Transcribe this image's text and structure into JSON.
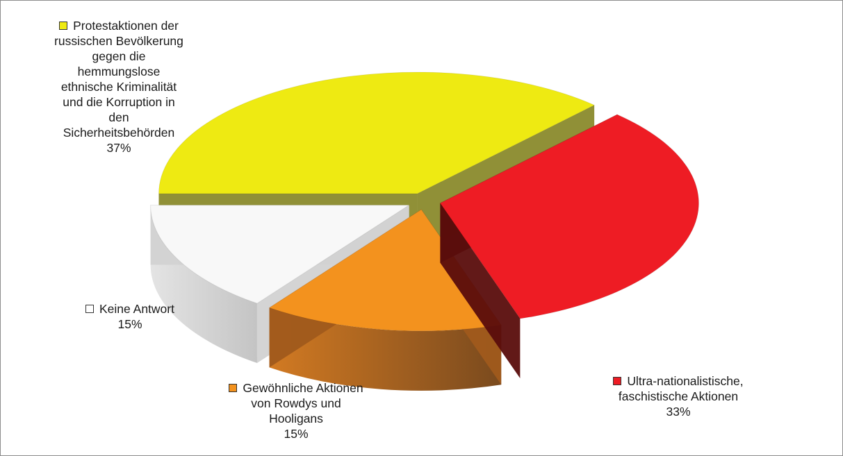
{
  "chart_data": {
    "type": "pie",
    "style": "3d-exploded",
    "slices": [
      {
        "id": "protest",
        "label_lines": [
          "Protestaktionen der",
          "russischen Bevölkerung",
          "gegen die",
          "hemmungslose",
          "ethnische Kriminalität",
          "und die Korruption in",
          "den",
          "Sicherheitsbehörden"
        ],
        "percent_label": "37%",
        "value": 37,
        "color": "#eeea12",
        "side_color": "#8a8a2c"
      },
      {
        "id": "ultra",
        "label_lines": [
          "Ultra-nationalistische,",
          "faschistische Aktionen"
        ],
        "percent_label": "33%",
        "value": 33,
        "color": "#ee1c24",
        "side_color": "#5a0d0c"
      },
      {
        "id": "hooligans",
        "label_lines": [
          "Gewöhnliche Aktionen",
          "von Rowdys und",
          "Hooligans"
        ],
        "percent_label": "15%",
        "value": 15,
        "color": "#f3921e",
        "side_color": "#a05a1c"
      },
      {
        "id": "keine",
        "label_lines": [
          "Keine Antwort"
        ],
        "percent_label": "15%",
        "value": 15,
        "color": "#f8f8f8",
        "side_color": "#d2d2d2"
      }
    ]
  }
}
